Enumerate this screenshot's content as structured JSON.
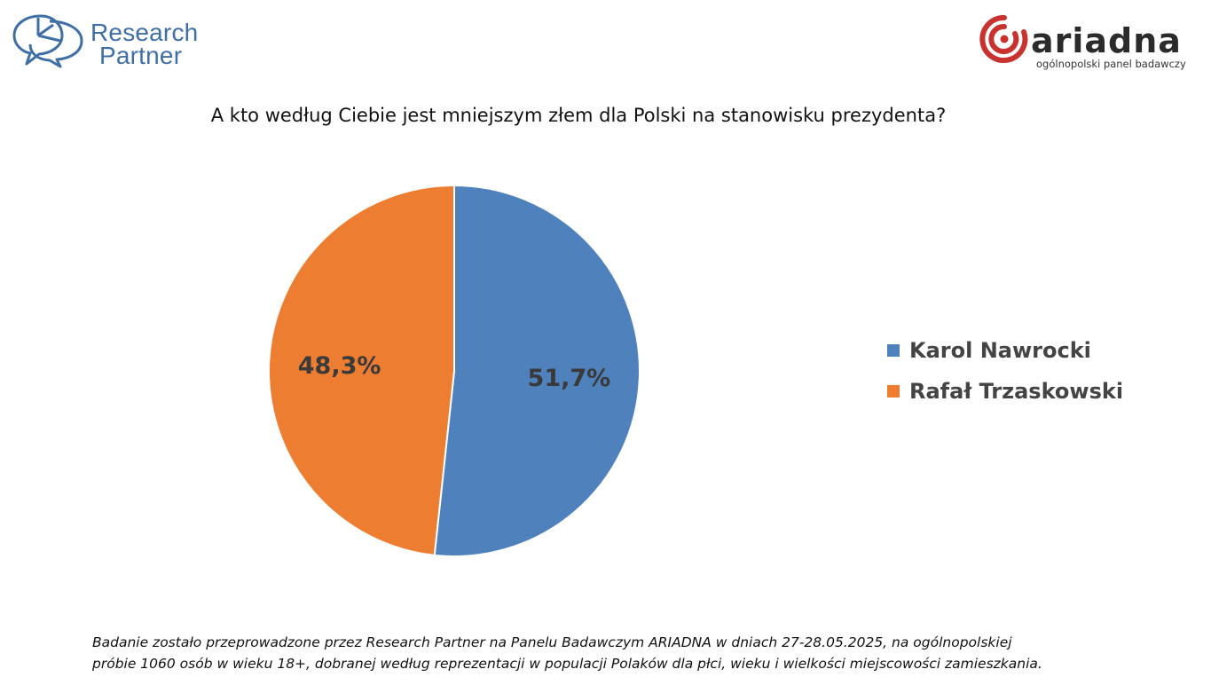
{
  "logos": {
    "left": {
      "line1": "Research",
      "line2": "Partner",
      "color": "#3f6fa5",
      "icon": "speech-bubbles-pie-icon"
    },
    "right": {
      "word": "ariadna",
      "tagline": "ogólnopolski panel badawczy",
      "accent": "#c8322f",
      "icon": "spiral-icon"
    }
  },
  "chart_data": {
    "type": "pie",
    "title": "A kto według Ciebie jest mniejszym złem dla Polski na stanowisku prezydenta?",
    "slices": [
      {
        "name": "Karol Nawrocki",
        "value": 51.7,
        "label": "51,7%",
        "color": "#4f81bd"
      },
      {
        "name": "Rafał Trzaskowski",
        "value": 48.3,
        "label": "48,3%",
        "color": "#ed7d31"
      }
    ],
    "legend_position": "right"
  },
  "footnote": {
    "line1": "Badanie zostało przeprowadzone przez Research Partner na Panelu Badawczym ARIADNA w dniach 27-28.05.2025, na ogólnopolskiej",
    "line2": "próbie 1060 osób w wieku 18+, dobranej według reprezentacji w populacji Polaków dla płci, wieku i wielkości miejscowości zamieszkania."
  }
}
